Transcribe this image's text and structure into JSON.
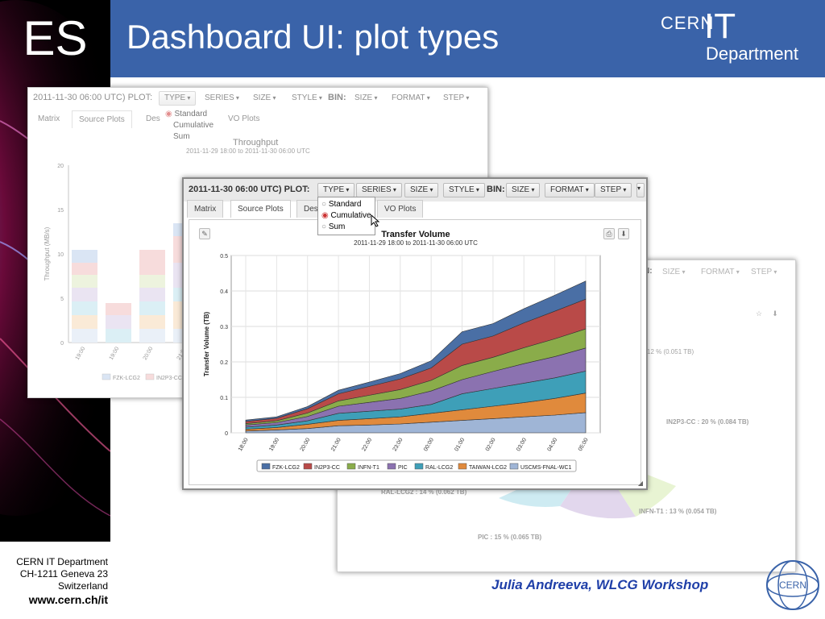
{
  "slide": {
    "logo_text": "ES",
    "title": "Dashboard UI: plot types",
    "cern_logo": {
      "cern": "CERN",
      "it": "IT",
      "dept": "Department"
    },
    "footer": {
      "line1": "CERN IT Department",
      "line2": "CH-1211 Geneva 23",
      "line3": "Switzerland",
      "web": "www.cern.ch/it"
    },
    "author": "Julia Andreeva, WLCG Workshop",
    "emblem_text": "CERN"
  },
  "back_panel": {
    "date": "2011-11-30 06:00 UTC) PLOT:",
    "buttons": [
      "TYPE",
      "SERIES",
      "SIZE",
      "STYLE"
    ],
    "bin_label": "BIN:",
    "bin_buttons": [
      "SIZE",
      "FORMAT",
      "STEP"
    ],
    "tabs": [
      "Matrix",
      "Source Plots",
      "Des",
      "VO Plots"
    ],
    "type_options": [
      "Standard",
      "Cumulative",
      "Sum"
    ],
    "chart_title": "Throughput",
    "chart_subtitle": "2011-11-29 18:00 to 2011-11-30 06:00 UTC",
    "ylabel": "Throughput (MB/s)",
    "yticks": [
      "0",
      "5",
      "10",
      "15",
      "20"
    ],
    "xticks": [
      "19:00",
      "19:00",
      "20:00",
      "21:00"
    ],
    "legend": [
      "FZK-LCG2",
      "IN2P3-CC"
    ]
  },
  "pie_panel": {
    "bin_buttons": [
      "SIZE",
      "FORMAT",
      "STEP"
    ],
    "bin_label": "N:",
    "labels": [
      "12 % (0.051 TB)",
      "IN2P3-CC : 20 % (0.084 TB)",
      "INFN-T1 : 13 % (0.054 TB)",
      "PIC : 15 % (0.065 TB)",
      "RAL-LCG2 : 14 % (0.062 TB)"
    ]
  },
  "front_panel": {
    "date": "2011-11-30 06:00 UTC) PLOT:",
    "buttons": [
      "TYPE",
      "SERIES",
      "SIZE",
      "STYLE"
    ],
    "bin_label": "BIN:",
    "bin_buttons": [
      "SIZE",
      "FORMAT",
      "STEP"
    ],
    "tabs": [
      "Matrix",
      "Source Plots",
      "Des",
      "VO Plots"
    ],
    "type_options": [
      "Standard",
      "Cumulative",
      "Sum"
    ],
    "selected_option": "Cumulative"
  },
  "colors": {
    "header": "#3a63a9",
    "author": "#1f3fa8",
    "series": [
      "#4a6fa5",
      "#b94a48",
      "#8aac4a",
      "#8b72b0",
      "#3e9fb8",
      "#e08a3c",
      "#9fb5d6"
    ]
  },
  "chart_data": {
    "type": "area",
    "title": "Transfer Volume",
    "subtitle": "2011-11-29 18:00 to 2011-11-30 06:00 UTC",
    "ylabel": "Transfer Volume (TB)",
    "ylim": [
      0,
      0.5
    ],
    "yticks": [
      "0",
      "0.1",
      "0.2",
      "0.3",
      "0.4",
      "0.5"
    ],
    "categories": [
      "18:00",
      "19:00",
      "20:00",
      "21:00",
      "22:00",
      "23:00",
      "00:00",
      "01:00",
      "02:00",
      "03:00",
      "04:00",
      "05:00"
    ],
    "stacked": true,
    "series": [
      {
        "name": "USCMS-FNAL-WC1",
        "values": [
          0.005,
          0.008,
          0.012,
          0.02,
          0.022,
          0.025,
          0.03,
          0.035,
          0.04,
          0.045,
          0.05,
          0.057
        ]
      },
      {
        "name": "TAIWAN-LCG2",
        "values": [
          0.005,
          0.007,
          0.012,
          0.015,
          0.018,
          0.02,
          0.025,
          0.03,
          0.035,
          0.04,
          0.047,
          0.055
        ]
      },
      {
        "name": "RAL-LCG2",
        "values": [
          0.006,
          0.007,
          0.01,
          0.02,
          0.021,
          0.022,
          0.025,
          0.045,
          0.05,
          0.055,
          0.058,
          0.062
        ]
      },
      {
        "name": "PIC",
        "values": [
          0.006,
          0.007,
          0.012,
          0.02,
          0.025,
          0.03,
          0.038,
          0.04,
          0.048,
          0.055,
          0.06,
          0.065
        ]
      },
      {
        "name": "INFN-T1",
        "values": [
          0.004,
          0.005,
          0.01,
          0.015,
          0.02,
          0.025,
          0.03,
          0.04,
          0.04,
          0.045,
          0.05,
          0.054
        ]
      },
      {
        "name": "IN2P3-CC",
        "values": [
          0.006,
          0.007,
          0.012,
          0.02,
          0.025,
          0.03,
          0.035,
          0.06,
          0.06,
          0.07,
          0.078,
          0.084
        ]
      },
      {
        "name": "FZK-LCG2",
        "values": [
          0.004,
          0.004,
          0.006,
          0.01,
          0.012,
          0.015,
          0.02,
          0.035,
          0.035,
          0.04,
          0.045,
          0.051
        ]
      }
    ],
    "legend": [
      "FZK-LCG2",
      "IN2P3-CC",
      "INFN-T1",
      "PIC",
      "RAL-LCG2",
      "TAIWAN-LCG2",
      "USCMS-FNAL-WC1"
    ],
    "legend_placement": "bottom",
    "grid": true
  }
}
